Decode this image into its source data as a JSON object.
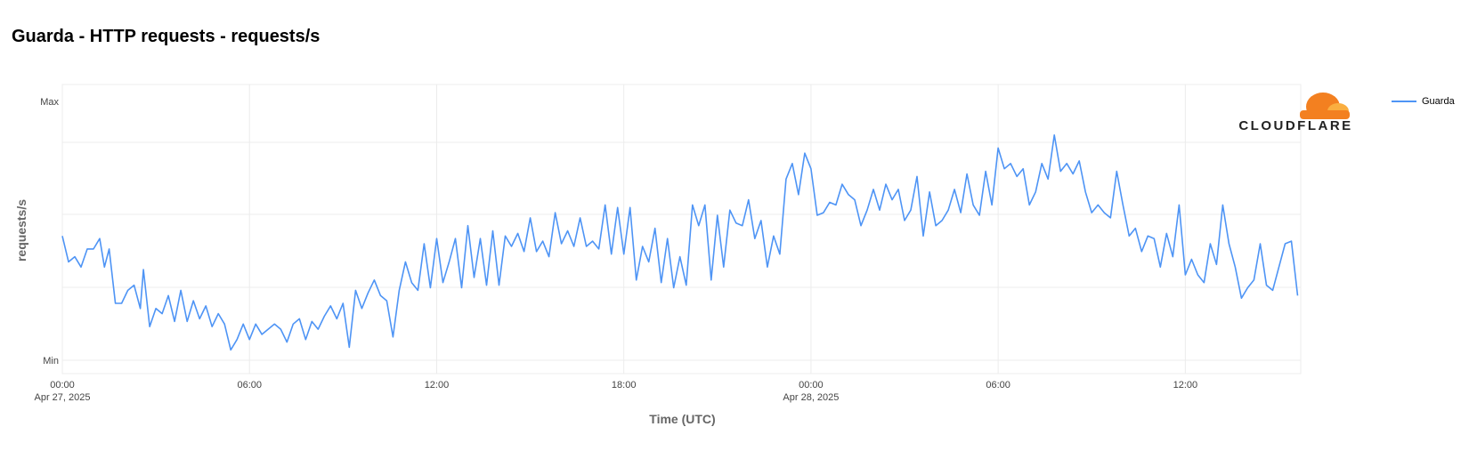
{
  "title": "Guarda - HTTP requests - requests/s",
  "colors": {
    "series": "#4e94f5",
    "grid": "#ececec",
    "brand": "#f38020",
    "brand_light": "#faae40"
  },
  "brand": {
    "name": "CLOUDFLARE"
  },
  "chart_data": {
    "type": "line",
    "title": "Guarda - HTTP requests - requests/s",
    "xlabel": "Time (UTC)",
    "ylabel": "requests/s",
    "y_tick_labels": [
      "Max",
      "Min"
    ],
    "ylim": [
      0,
      100
    ],
    "xlim": [
      0,
      39.7
    ],
    "x_unit": "hours since Apr 27, 2025 00:00 UTC",
    "x_ticks": [
      {
        "x": 0,
        "label": "00:00",
        "sublabel": "Apr 27, 2025"
      },
      {
        "x": 6,
        "label": "06:00",
        "sublabel": ""
      },
      {
        "x": 12,
        "label": "12:00",
        "sublabel": ""
      },
      {
        "x": 18,
        "label": "18:00",
        "sublabel": ""
      },
      {
        "x": 24,
        "label": "00:00",
        "sublabel": "Apr 28, 2025"
      },
      {
        "x": 30,
        "label": "06:00",
        "sublabel": ""
      },
      {
        "x": 36,
        "label": "12:00",
        "sublabel": ""
      }
    ],
    "grid": true,
    "legend_position": "right",
    "series": [
      {
        "name": "Guarda",
        "points": [
          [
            0.0,
            48
          ],
          [
            0.2,
            38
          ],
          [
            0.4,
            40
          ],
          [
            0.6,
            36
          ],
          [
            0.8,
            43
          ],
          [
            1.0,
            43
          ],
          [
            1.2,
            47
          ],
          [
            1.35,
            36
          ],
          [
            1.5,
            43
          ],
          [
            1.7,
            22
          ],
          [
            1.9,
            22
          ],
          [
            2.1,
            27
          ],
          [
            2.3,
            29
          ],
          [
            2.5,
            20
          ],
          [
            2.6,
            35
          ],
          [
            2.8,
            13
          ],
          [
            3.0,
            20
          ],
          [
            3.2,
            18
          ],
          [
            3.4,
            25
          ],
          [
            3.6,
            15
          ],
          [
            3.8,
            27
          ],
          [
            4.0,
            15
          ],
          [
            4.2,
            23
          ],
          [
            4.4,
            16
          ],
          [
            4.6,
            21
          ],
          [
            4.8,
            13
          ],
          [
            5.0,
            18
          ],
          [
            5.2,
            14
          ],
          [
            5.4,
            4
          ],
          [
            5.6,
            8
          ],
          [
            5.8,
            14
          ],
          [
            6.0,
            8
          ],
          [
            6.2,
            14
          ],
          [
            6.4,
            10
          ],
          [
            6.6,
            12
          ],
          [
            6.8,
            14
          ],
          [
            7.0,
            12
          ],
          [
            7.2,
            7
          ],
          [
            7.4,
            14
          ],
          [
            7.6,
            16
          ],
          [
            7.8,
            8
          ],
          [
            8.0,
            15
          ],
          [
            8.2,
            12
          ],
          [
            8.4,
            17
          ],
          [
            8.6,
            21
          ],
          [
            8.8,
            16
          ],
          [
            9.0,
            22
          ],
          [
            9.2,
            5
          ],
          [
            9.4,
            27
          ],
          [
            9.6,
            20
          ],
          [
            9.8,
            26
          ],
          [
            10.0,
            31
          ],
          [
            10.2,
            25
          ],
          [
            10.4,
            23
          ],
          [
            10.6,
            9
          ],
          [
            10.8,
            27
          ],
          [
            11.0,
            38
          ],
          [
            11.2,
            30
          ],
          [
            11.4,
            27
          ],
          [
            11.6,
            45
          ],
          [
            11.8,
            28
          ],
          [
            12.0,
            47
          ],
          [
            12.2,
            30
          ],
          [
            12.4,
            38
          ],
          [
            12.6,
            47
          ],
          [
            12.8,
            28
          ],
          [
            13.0,
            52
          ],
          [
            13.2,
            32
          ],
          [
            13.4,
            47
          ],
          [
            13.6,
            29
          ],
          [
            13.8,
            50
          ],
          [
            14.0,
            29
          ],
          [
            14.2,
            48
          ],
          [
            14.4,
            44
          ],
          [
            14.6,
            49
          ],
          [
            14.8,
            42
          ],
          [
            15.0,
            55
          ],
          [
            15.2,
            42
          ],
          [
            15.4,
            46
          ],
          [
            15.6,
            40
          ],
          [
            15.8,
            57
          ],
          [
            16.0,
            45
          ],
          [
            16.2,
            50
          ],
          [
            16.4,
            44
          ],
          [
            16.6,
            55
          ],
          [
            16.8,
            44
          ],
          [
            17.0,
            46
          ],
          [
            17.2,
            43
          ],
          [
            17.4,
            60
          ],
          [
            17.6,
            41
          ],
          [
            17.8,
            59
          ],
          [
            18.0,
            41
          ],
          [
            18.2,
            59
          ],
          [
            18.4,
            31
          ],
          [
            18.6,
            44
          ],
          [
            18.8,
            38
          ],
          [
            19.0,
            51
          ],
          [
            19.2,
            30
          ],
          [
            19.4,
            47
          ],
          [
            19.6,
            28
          ],
          [
            19.8,
            40
          ],
          [
            20.0,
            29
          ],
          [
            20.2,
            60
          ],
          [
            20.4,
            52
          ],
          [
            20.6,
            60
          ],
          [
            20.8,
            31
          ],
          [
            21.0,
            56
          ],
          [
            21.2,
            36
          ],
          [
            21.4,
            58
          ],
          [
            21.6,
            53
          ],
          [
            21.8,
            52
          ],
          [
            22.0,
            62
          ],
          [
            22.2,
            47
          ],
          [
            22.4,
            54
          ],
          [
            22.6,
            36
          ],
          [
            22.8,
            48
          ],
          [
            23.0,
            41
          ],
          [
            23.2,
            70
          ],
          [
            23.4,
            76
          ],
          [
            23.6,
            64
          ],
          [
            23.8,
            80
          ],
          [
            24.0,
            74
          ],
          [
            24.2,
            56
          ],
          [
            24.4,
            57
          ],
          [
            24.6,
            61
          ],
          [
            24.8,
            60
          ],
          [
            25.0,
            68
          ],
          [
            25.2,
            64
          ],
          [
            25.4,
            62
          ],
          [
            25.6,
            52
          ],
          [
            25.8,
            58
          ],
          [
            26.0,
            66
          ],
          [
            26.2,
            58
          ],
          [
            26.4,
            68
          ],
          [
            26.6,
            62
          ],
          [
            26.8,
            66
          ],
          [
            27.0,
            54
          ],
          [
            27.2,
            58
          ],
          [
            27.4,
            71
          ],
          [
            27.6,
            48
          ],
          [
            27.8,
            65
          ],
          [
            28.0,
            52
          ],
          [
            28.2,
            54
          ],
          [
            28.4,
            58
          ],
          [
            28.6,
            66
          ],
          [
            28.8,
            57
          ],
          [
            29.0,
            72
          ],
          [
            29.2,
            60
          ],
          [
            29.4,
            56
          ],
          [
            29.6,
            73
          ],
          [
            29.8,
            60
          ],
          [
            30.0,
            82
          ],
          [
            30.2,
            74
          ],
          [
            30.4,
            76
          ],
          [
            30.6,
            71
          ],
          [
            30.8,
            74
          ],
          [
            31.0,
            60
          ],
          [
            31.2,
            65
          ],
          [
            31.4,
            76
          ],
          [
            31.6,
            70
          ],
          [
            31.8,
            87
          ],
          [
            32.0,
            73
          ],
          [
            32.2,
            76
          ],
          [
            32.4,
            72
          ],
          [
            32.6,
            77
          ],
          [
            32.8,
            65
          ],
          [
            33.0,
            57
          ],
          [
            33.2,
            60
          ],
          [
            33.4,
            57
          ],
          [
            33.6,
            55
          ],
          [
            33.8,
            73
          ],
          [
            34.0,
            60
          ],
          [
            34.2,
            48
          ],
          [
            34.4,
            51
          ],
          [
            34.6,
            42
          ],
          [
            34.8,
            48
          ],
          [
            35.0,
            47
          ],
          [
            35.2,
            36
          ],
          [
            35.4,
            49
          ],
          [
            35.6,
            40
          ],
          [
            35.8,
            60
          ],
          [
            36.0,
            33
          ],
          [
            36.2,
            39
          ],
          [
            36.4,
            33
          ],
          [
            36.6,
            30
          ],
          [
            36.8,
            45
          ],
          [
            37.0,
            37
          ],
          [
            37.2,
            60
          ],
          [
            37.4,
            45
          ],
          [
            37.6,
            36
          ],
          [
            37.8,
            24
          ],
          [
            38.0,
            28
          ],
          [
            38.2,
            31
          ],
          [
            38.4,
            45
          ],
          [
            38.6,
            29
          ],
          [
            38.8,
            27
          ],
          [
            39.0,
            36
          ],
          [
            39.2,
            45
          ],
          [
            39.4,
            46
          ],
          [
            39.6,
            25
          ]
        ]
      }
    ]
  }
}
